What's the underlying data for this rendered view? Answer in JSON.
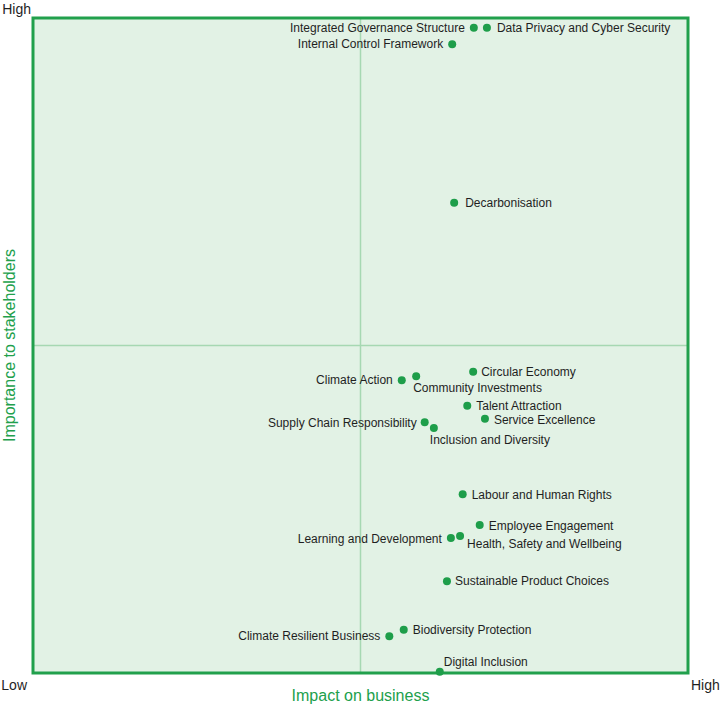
{
  "chart_data": {
    "type": "scatter",
    "x_label": "Impact on business",
    "y_label": "Importance to stakeholders",
    "xlim": [
      0,
      100
    ],
    "ylim": [
      0,
      100
    ],
    "xticks": [
      {
        "value": 0,
        "label": "Low"
      },
      {
        "value": 100,
        "label": "High"
      }
    ],
    "yticks": [
      {
        "value": 100,
        "label": "High"
      }
    ],
    "color": "#1e9e4a",
    "marker": "circle",
    "point_labels": [
      "Integrated Governance Structure",
      "Data Privacy and Cyber Security",
      "Internal Control Framework",
      "Decarbonisation",
      "Circular Economy",
      "Climate Action",
      "Community Investments",
      "Talent Attraction",
      "Service Excellence",
      "Supply Chain Responsibility",
      "Inclusion and Diversity",
      "Labour and Human Rights",
      "Employee Engagement",
      "Learning and Development",
      "Health, Safety and Wellbeing",
      "Sustainable Product Choices",
      "Biodiversity Protection",
      "Climate Resilient Business",
      "Digital Inclusion"
    ],
    "x": [
      67.3,
      69.3,
      64.0,
      64.3,
      67.2,
      56.3,
      58.5,
      66.3,
      69.0,
      59.8,
      61.2,
      65.6,
      68.2,
      63.8,
      65.2,
      63.2,
      56.6,
      54.4,
      62.1
    ],
    "values": [
      98.5,
      98.5,
      96.0,
      71.8,
      46.0,
      44.7,
      45.3,
      40.8,
      38.8,
      38.3,
      37.4,
      27.3,
      22.6,
      20.6,
      20.9,
      14.0,
      6.6,
      5.6,
      0.2
    ]
  }
}
